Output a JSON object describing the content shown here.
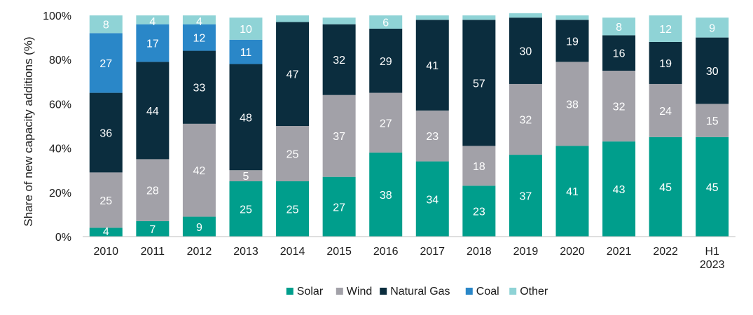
{
  "chart_data": {
    "type": "bar",
    "stacked": true,
    "categories": [
      "2010",
      "2011",
      "2012",
      "2013",
      "2014",
      "2015",
      "2016",
      "2017",
      "2018",
      "2019",
      "2020",
      "2021",
      "2022",
      "H1\n2023"
    ],
    "series": [
      {
        "name": "Solar",
        "color": "#009e8c",
        "values": [
          4,
          7,
          9,
          25,
          25,
          27,
          38,
          34,
          23,
          37,
          41,
          43,
          45,
          45
        ],
        "labels": [
          "4",
          "7",
          "9",
          "25",
          "25",
          "27",
          "38",
          "34",
          "23",
          "37",
          "41",
          "43",
          "45",
          "45"
        ]
      },
      {
        "name": "Wind",
        "color": "#a2a1a8",
        "values": [
          25,
          28,
          42,
          5,
          25,
          37,
          27,
          23,
          18,
          32,
          38,
          32,
          24,
          15
        ],
        "labels": [
          "25",
          "28",
          "42",
          "5",
          "25",
          "37",
          "27",
          "23",
          "18",
          "32",
          "38",
          "32",
          "24",
          "15"
        ]
      },
      {
        "name": "Natural Gas",
        "color": "#0b2d3e",
        "values": [
          36,
          44,
          33,
          48,
          47,
          32,
          29,
          41,
          57,
          30,
          19,
          16,
          19,
          30
        ],
        "labels": [
          "36",
          "44",
          "33",
          "48",
          "47",
          "32",
          "29",
          "41",
          "57",
          "30",
          "19",
          "16",
          "19",
          "30"
        ]
      },
      {
        "name": "Coal",
        "color": "#2a87c8",
        "values": [
          27,
          17,
          12,
          11,
          0,
          0,
          0,
          0,
          0,
          0,
          0,
          0,
          0,
          0
        ],
        "labels": [
          "27",
          "17",
          "12",
          "11",
          "",
          "",
          "",
          "",
          "",
          "",
          "",
          "",
          "",
          ""
        ]
      },
      {
        "name": "Other",
        "color": "#8fd3d6",
        "values": [
          8,
          4,
          4,
          10,
          3,
          3,
          6,
          2,
          2,
          2,
          2,
          8,
          12,
          9
        ],
        "labels": [
          "8",
          "4",
          "4",
          "10",
          "",
          "",
          "6",
          "",
          "",
          "",
          "",
          "8",
          "12",
          "9"
        ]
      }
    ],
    "ylabel": "Share of new capacity additions (%)",
    "xlabel": "",
    "ylim": [
      0,
      100
    ],
    "yticks": [
      "0%",
      "20%",
      "40%",
      "60%",
      "80%",
      "100%"
    ],
    "grid": false,
    "legend_position": "bottom"
  }
}
